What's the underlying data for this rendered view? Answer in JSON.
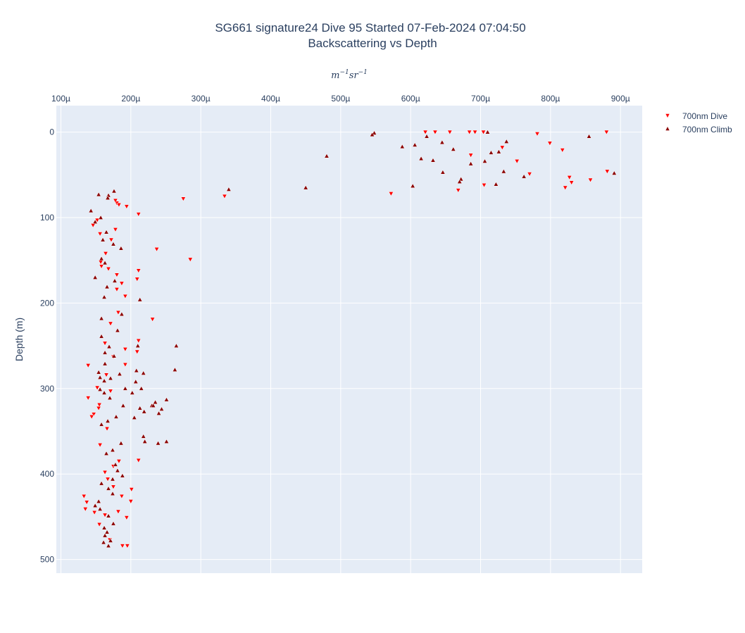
{
  "chart_data": {
    "type": "scatter",
    "title": "SG661 signature24 Dive 95 Started 07-Feb-2024 07:04:50",
    "subtitle": "Backscattering vs Depth",
    "xlabel": "m^{-1}sr^{-1}",
    "ylabel": "Depth (m)",
    "xaxis_side": "top",
    "yaxis_reversed": true,
    "xlim": [
      9.35e-05,
      0.000931
    ],
    "ylim": [
      516,
      -31
    ],
    "x_ticks": [
      "100µ",
      "200µ",
      "300µ",
      "400µ",
      "500µ",
      "600µ",
      "700µ",
      "800µ",
      "900µ"
    ],
    "y_ticks": [
      "0",
      "100",
      "200",
      "300",
      "400",
      "500"
    ],
    "grid": true,
    "legend_position": "top-right",
    "colors": {
      "dive": "#ff0000",
      "climb": "#8b0000",
      "plot_bg": "#e5ecf6",
      "grid": "#ffffff",
      "text": "#2a3f5f"
    },
    "series": [
      {
        "name": "700nm Dive",
        "marker": "triangle-down",
        "color": "#ff0000",
        "x": [
          0.000621,
          0.000635,
          0.000656,
          0.000684,
          0.000692,
          0.000704,
          0.000781,
          0.00088,
          0.000799,
          0.000817,
          0.000731,
          0.000752,
          0.00077,
          0.000827,
          0.000857,
          0.00083,
          0.000881,
          0.000821,
          0.000705,
          0.000668,
          0.000572,
          0.000686,
          0.000275,
          0.000334,
          0.000194,
          0.000211,
          0.00018,
          0.000178,
          0.000183,
          0.000152,
          0.000146,
          0.000156,
          0.000178,
          0.000172,
          0.000164,
          0.000157,
          0.000237,
          0.000285,
          0.000158,
          0.000168,
          0.00018,
          0.000211,
          0.000209,
          0.000187,
          0.00018,
          0.000192,
          0.000182,
          0.000171,
          0.000231,
          0.000163,
          0.000211,
          0.000192,
          0.000209,
          0.000175,
          0.000192,
          0.000139,
          0.000165,
          0.000152,
          0.000171,
          0.000155,
          0.000139,
          0.000154,
          0.000147,
          0.000144,
          0.000166,
          0.000156,
          0.000183,
          0.000175,
          0.000163,
          0.000167,
          0.000201,
          0.000211,
          0.000175,
          0.000187,
          0.0002,
          0.000182,
          0.000163,
          0.000133,
          0.000137,
          0.000135,
          0.000148,
          0.000194,
          0.000155,
          0.00017,
          0.000188,
          0.000195
        ],
        "y": [
          0,
          0,
          0,
          0,
          0,
          0,
          2,
          0,
          13,
          21,
          18,
          34,
          49,
          53,
          56,
          59,
          46,
          65,
          62,
          68,
          72,
          27,
          78,
          75,
          87,
          96,
          83,
          80,
          85,
          103,
          109,
          119,
          114,
          126,
          142,
          152,
          137,
          149,
          157,
          160,
          167,
          162,
          172,
          177,
          184,
          192,
          211,
          224,
          219,
          247,
          244,
          254,
          257,
          263,
          272,
          273,
          284,
          299,
          303,
          319,
          311,
          323,
          330,
          333,
          347,
          366,
          385,
          391,
          398,
          406,
          418,
          384,
          415,
          426,
          432,
          444,
          448,
          426,
          433,
          441,
          445,
          451,
          459,
          477,
          484,
          484
        ]
      },
      {
        "name": "700nm Climb",
        "marker": "triangle-up",
        "color": "#8b0000",
        "x": [
          0.000548,
          0.000545,
          0.000623,
          0.00071,
          0.000855,
          0.000891,
          0.000737,
          0.000715,
          0.000726,
          0.000706,
          0.000686,
          0.000733,
          0.000722,
          0.000672,
          0.000588,
          0.000606,
          0.000645,
          0.000661,
          0.000615,
          0.000632,
          0.000646,
          0.000603,
          0.00067,
          0.000762,
          0.00045,
          0.00048,
          0.00034,
          0.000176,
          0.000168,
          0.000154,
          0.000167,
          0.000143,
          0.000157,
          0.000149,
          0.000165,
          0.00016,
          0.000175,
          0.000186,
          0.000158,
          0.000163,
          0.000149,
          0.000177,
          0.000166,
          0.000162,
          0.000213,
          0.000187,
          0.000158,
          0.000181,
          0.000158,
          0.00021,
          0.000169,
          0.000163,
          0.000176,
          0.000163,
          0.000154,
          0.000171,
          0.000192,
          0.000156,
          0.000162,
          0.00017,
          0.000208,
          0.000184,
          0.000156,
          0.000162,
          0.000218,
          0.000207,
          0.000215,
          0.000202,
          0.000189,
          0.000213,
          0.000219,
          0.00023,
          0.000244,
          0.00024,
          0.000235,
          0.000232,
          0.000251,
          0.000265,
          0.000263,
          0.000205,
          0.000218,
          0.00022,
          0.000239,
          0.000251,
          0.000179,
          0.000167,
          0.000158,
          0.000186,
          0.000174,
          0.000165,
          0.000178,
          0.000181,
          0.000188,
          0.000174,
          0.000158,
          0.000168,
          0.000174,
          0.000154,
          0.000149,
          0.000156,
          0.000168,
          0.000175,
          0.000162,
          0.000166,
          0.000163,
          0.000171,
          0.000161,
          0.000168
        ],
        "y": [
          1,
          3,
          5,
          0,
          5,
          48,
          11,
          24,
          23,
          34,
          37,
          46,
          61,
          55,
          17,
          15,
          12,
          20,
          31,
          33,
          47,
          63,
          58,
          52,
          65,
          28,
          67,
          69,
          74,
          73,
          77,
          92,
          100,
          105,
          117,
          126,
          131,
          136,
          148,
          153,
          170,
          174,
          181,
          193,
          196,
          213,
          218,
          232,
          239,
          250,
          251,
          258,
          262,
          271,
          281,
          288,
          300,
          301,
          305,
          311,
          279,
          283,
          287,
          291,
          282,
          292,
          300,
          305,
          320,
          323,
          327,
          320,
          324,
          329,
          316,
          320,
          313,
          250,
          278,
          334,
          356,
          362,
          364,
          362,
          333,
          338,
          342,
          364,
          372,
          376,
          389,
          396,
          402,
          406,
          411,
          417,
          423,
          432,
          437,
          441,
          449,
          458,
          463,
          468,
          472,
          478,
          480,
          484
        ]
      }
    ]
  }
}
